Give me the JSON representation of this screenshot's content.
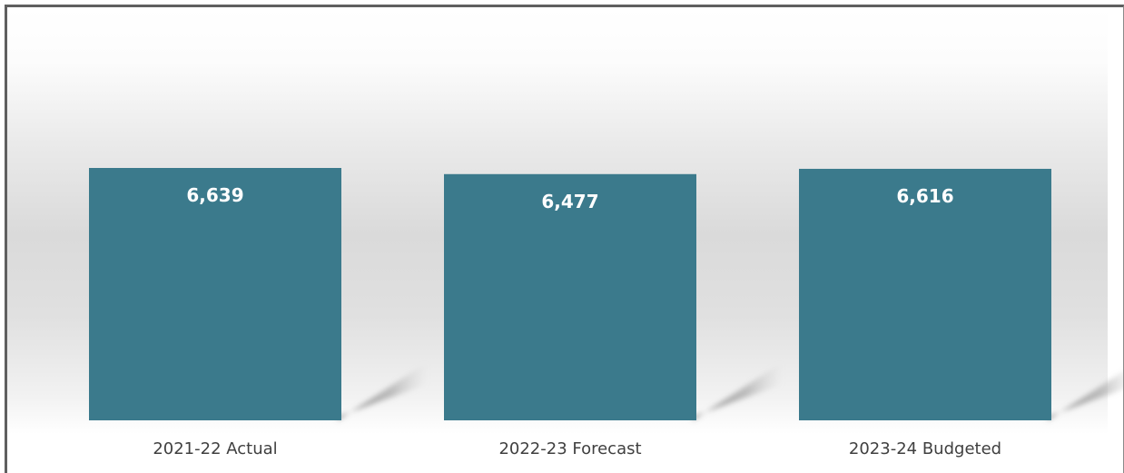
{
  "chart_data": {
    "type": "bar",
    "categories": [
      "2021-22 Actual",
      "2022-23 Forecast",
      "2023-24 Budgeted"
    ],
    "values": [
      6639,
      6477,
      6616
    ],
    "data_labels": [
      "6,639",
      "6,477",
      "6,616"
    ],
    "title": "",
    "xlabel": "",
    "ylabel": "",
    "ylim": [
      0,
      7000
    ],
    "grid": false,
    "legend": "none",
    "bar_color": "#3b7a8c"
  }
}
